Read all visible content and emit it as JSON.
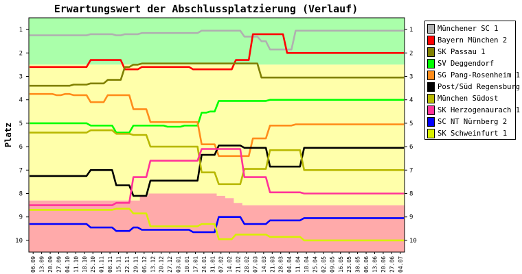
{
  "chart_data": {
    "type": "line",
    "title": "Erwartungswert der Abschlussplatzierung (Verlauf)",
    "ylabel": "Platz",
    "xlabel": "",
    "ylim": [
      1,
      10
    ],
    "y_inverted": true,
    "y_ticks": [
      1,
      2,
      3,
      4,
      5,
      6,
      7,
      8,
      9,
      10
    ],
    "x": [
      "06.09",
      "13.09",
      "20.09",
      "27.09",
      "04.10",
      "11.10",
      "18.10",
      "25.10",
      "01.11",
      "08.11",
      "15.11",
      "22.11",
      "29.11",
      "06.12",
      "13.12",
      "20.12",
      "27.12",
      "03.01",
      "10.01",
      "17.01",
      "24.01",
      "31.01",
      "07.02",
      "14.02",
      "21.02",
      "28.02",
      "07.03",
      "14.03",
      "21.03",
      "28.03",
      "04.04",
      "11.04",
      "18.04",
      "25.04",
      "02.05",
      "09.05",
      "16.05",
      "23.05",
      "30.05",
      "06.06",
      "13.06",
      "20.06",
      "27.06",
      "04.07"
    ],
    "zones": [
      {
        "color": "#aaffaa",
        "bounds": [
          [
            0.5,
            2.5
          ],
          [
            0.5,
            2.5
          ],
          [
            0.5,
            2.5
          ],
          [
            0.5,
            2.5
          ],
          [
            0.5,
            2.5
          ],
          [
            0.5,
            2.5
          ],
          [
            0.5,
            2.5
          ],
          [
            0.5,
            2.5
          ],
          [
            0.5,
            2.5
          ],
          [
            0.5,
            2.5
          ],
          [
            0.5,
            2.5
          ],
          [
            0.5,
            2.5
          ],
          [
            0.5,
            2.5
          ],
          [
            0.5,
            2.5
          ],
          [
            0.5,
            2.5
          ],
          [
            0.5,
            2.5
          ],
          [
            0.5,
            2.5
          ],
          [
            0.5,
            2.5
          ],
          [
            0.5,
            2.5
          ],
          [
            0.5,
            2.5
          ],
          [
            0.5,
            2.5
          ],
          [
            0.5,
            2.5
          ],
          [
            0.5,
            2.5
          ],
          [
            0.5,
            2.5
          ],
          [
            0.5,
            2.5
          ],
          [
            0.5,
            2.5
          ],
          [
            0.5,
            2.5
          ],
          [
            0.5,
            2.5
          ],
          [
            0.5,
            2.5
          ],
          [
            0.5,
            2.5
          ],
          [
            0.5,
            2.5
          ],
          [
            0.5,
            2.5
          ],
          [
            0.5,
            2.5
          ],
          [
            0.5,
            2.5
          ],
          [
            0.5,
            2.5
          ],
          [
            0.5,
            2.5
          ],
          [
            0.5,
            2.5
          ],
          [
            0.5,
            2.5
          ],
          [
            0.5,
            2.5
          ],
          [
            0.5,
            2.5
          ],
          [
            0.5,
            2.5
          ],
          [
            0.5,
            2.5
          ],
          [
            0.5,
            2.5
          ],
          [
            0.5,
            2.5
          ]
        ]
      },
      {
        "color": "#ffffaa",
        "bounds": [
          [
            2.5,
            8.3
          ],
          [
            2.5,
            8.3
          ],
          [
            2.5,
            8.3
          ],
          [
            2.5,
            8.3
          ],
          [
            2.5,
            8.3
          ],
          [
            2.5,
            8.3
          ],
          [
            2.5,
            8.3
          ],
          [
            2.5,
            8.3
          ],
          [
            2.5,
            8.3
          ],
          [
            2.5,
            8.3
          ],
          [
            2.5,
            8.3
          ],
          [
            2.5,
            8.3
          ],
          [
            2.5,
            8.3
          ],
          [
            2.5,
            8.1
          ],
          [
            2.5,
            8.0
          ],
          [
            2.5,
            8.0
          ],
          [
            2.5,
            8.0
          ],
          [
            2.5,
            8.0
          ],
          [
            2.5,
            8.0
          ],
          [
            2.5,
            8.0
          ],
          [
            2.5,
            8.0
          ],
          [
            2.5,
            8.0
          ],
          [
            2.5,
            8.1
          ],
          [
            2.5,
            8.2
          ],
          [
            2.5,
            8.4
          ],
          [
            2.5,
            8.5
          ],
          [
            2.5,
            8.5
          ],
          [
            2.5,
            8.5
          ],
          [
            2.5,
            8.5
          ],
          [
            2.5,
            8.5
          ],
          [
            2.5,
            8.5
          ],
          [
            2.5,
            8.5
          ],
          [
            2.5,
            8.5
          ],
          [
            2.5,
            8.5
          ],
          [
            2.5,
            8.5
          ],
          [
            2.5,
            8.5
          ],
          [
            2.5,
            8.5
          ],
          [
            2.5,
            8.5
          ],
          [
            2.5,
            8.5
          ],
          [
            2.5,
            8.5
          ],
          [
            2.5,
            8.5
          ],
          [
            2.5,
            8.5
          ],
          [
            2.5,
            8.5
          ],
          [
            2.5,
            8.5
          ]
        ]
      },
      {
        "color": "#ffaaaa",
        "bounds": [
          [
            8.3,
            10.5
          ],
          [
            8.3,
            10.5
          ],
          [
            8.3,
            10.5
          ],
          [
            8.3,
            10.5
          ],
          [
            8.3,
            10.5
          ],
          [
            8.3,
            10.5
          ],
          [
            8.3,
            10.5
          ],
          [
            8.3,
            10.5
          ],
          [
            8.3,
            10.5
          ],
          [
            8.3,
            10.5
          ],
          [
            8.3,
            10.5
          ],
          [
            8.3,
            10.5
          ],
          [
            8.3,
            10.5
          ],
          [
            8.1,
            10.5
          ],
          [
            8.0,
            10.5
          ],
          [
            8.0,
            10.5
          ],
          [
            8.0,
            10.5
          ],
          [
            8.0,
            10.5
          ],
          [
            8.0,
            10.5
          ],
          [
            8.0,
            10.5
          ],
          [
            8.0,
            10.5
          ],
          [
            8.0,
            10.5
          ],
          [
            8.1,
            10.5
          ],
          [
            8.2,
            10.5
          ],
          [
            8.4,
            10.5
          ],
          [
            8.5,
            10.5
          ],
          [
            8.5,
            10.5
          ],
          [
            8.5,
            10.5
          ],
          [
            8.5,
            10.5
          ],
          [
            8.5,
            10.5
          ],
          [
            8.5,
            10.5
          ],
          [
            8.5,
            10.5
          ],
          [
            8.5,
            10.5
          ],
          [
            8.5,
            10.5
          ],
          [
            8.5,
            10.5
          ],
          [
            8.5,
            10.5
          ],
          [
            8.5,
            10.5
          ],
          [
            8.5,
            10.5
          ],
          [
            8.5,
            10.5
          ],
          [
            8.5,
            10.5
          ],
          [
            8.5,
            10.5
          ],
          [
            8.5,
            10.5
          ],
          [
            8.5,
            10.5
          ],
          [
            8.5,
            10.5
          ]
        ]
      }
    ],
    "series": [
      {
        "name": "Münchener SC 1",
        "color": "#b0b0b0",
        "values": [
          1.25,
          1.25,
          1.25,
          1.25,
          1.25,
          1.25,
          1.25,
          1.2,
          1.2,
          1.2,
          1.25,
          1.2,
          1.2,
          1.15,
          1.15,
          1.15,
          1.15,
          1.15,
          1.15,
          1.15,
          1.05,
          1.05,
          1.05,
          1.05,
          1.05,
          1.3,
          1.3,
          1.5,
          1.85,
          1.85,
          1.85,
          1.05,
          1.05,
          1.05,
          1.05,
          1.05,
          1.05,
          1.05,
          1.05,
          1.05,
          1.05,
          1.05,
          1.05,
          1.05
        ]
      },
      {
        "name": "Bayern München 2",
        "color": "#ff0000",
        "values": [
          2.6,
          2.6,
          2.6,
          2.6,
          2.6,
          2.6,
          2.6,
          2.3,
          2.3,
          2.3,
          2.3,
          2.7,
          2.7,
          2.6,
          2.6,
          2.6,
          2.6,
          2.6,
          2.6,
          2.7,
          2.7,
          2.7,
          2.7,
          2.7,
          2.3,
          2.3,
          1.2,
          1.2,
          1.2,
          1.2,
          2.0,
          2.0,
          2.0,
          2.0,
          2.0,
          2.0,
          2.0,
          2.0,
          2.0,
          2.0,
          2.0,
          2.0,
          2.0,
          2.0
        ]
      },
      {
        "name": "SK Passau 1",
        "color": "#808000",
        "values": [
          3.4,
          3.4,
          3.4,
          3.4,
          3.4,
          3.35,
          3.35,
          3.3,
          3.3,
          3.15,
          3.15,
          2.6,
          2.5,
          2.45,
          2.45,
          2.45,
          2.45,
          2.45,
          2.45,
          2.45,
          2.45,
          2.45,
          2.45,
          2.45,
          2.45,
          2.45,
          2.45,
          3.05,
          3.05,
          3.05,
          3.05,
          3.05,
          3.05,
          3.05,
          3.05,
          3.05,
          3.05,
          3.05,
          3.05,
          3.05,
          3.05,
          3.05,
          3.05,
          3.05
        ]
      },
      {
        "name": "SV Deggendorf",
        "color": "#00ff00",
        "values": [
          5.0,
          5.0,
          5.0,
          5.0,
          5.0,
          5.0,
          5.0,
          5.1,
          5.1,
          5.1,
          5.4,
          5.4,
          5.1,
          5.1,
          5.1,
          5.1,
          5.15,
          5.15,
          5.1,
          5.1,
          4.55,
          4.5,
          4.05,
          4.05,
          4.05,
          4.05,
          4.05,
          4.05,
          4.0,
          4.0,
          4.0,
          4.0,
          4.0,
          4.0,
          4.0,
          4.0,
          4.0,
          4.0,
          4.0,
          4.0,
          4.0,
          4.0,
          4.0,
          4.0
        ]
      },
      {
        "name": "SG Pang-Rosenheim 1",
        "color": "#ff8c1a",
        "values": [
          3.75,
          3.75,
          3.75,
          3.8,
          3.75,
          3.8,
          3.8,
          4.1,
          4.1,
          3.8,
          3.8,
          3.8,
          4.4,
          4.4,
          4.95,
          4.95,
          4.95,
          4.95,
          4.95,
          4.95,
          5.9,
          5.9,
          6.4,
          6.4,
          6.4,
          6.4,
          5.65,
          5.65,
          5.1,
          5.1,
          5.1,
          5.05,
          5.05,
          5.05,
          5.05,
          5.05,
          5.05,
          5.05,
          5.05,
          5.05,
          5.05,
          5.05,
          5.05,
          5.05
        ]
      },
      {
        "name": "Post/Süd Regensburg",
        "color": "#000000",
        "values": [
          7.25,
          7.25,
          7.25,
          7.25,
          7.25,
          7.25,
          7.25,
          7.0,
          7.0,
          7.0,
          7.65,
          7.65,
          8.1,
          8.1,
          7.45,
          7.45,
          7.45,
          7.45,
          7.45,
          7.45,
          6.35,
          6.35,
          5.95,
          5.95,
          5.95,
          6.05,
          6.05,
          6.05,
          6.85,
          6.85,
          6.85,
          6.85,
          6.05,
          6.05,
          6.05,
          6.05,
          6.05,
          6.05,
          6.05,
          6.05,
          6.05,
          6.05,
          6.05,
          6.05
        ]
      },
      {
        "name": "München Südost",
        "color": "#b8b800",
        "values": [
          5.4,
          5.4,
          5.4,
          5.4,
          5.4,
          5.4,
          5.4,
          5.3,
          5.3,
          5.3,
          5.45,
          5.45,
          5.5,
          5.5,
          6.0,
          6.0,
          6.0,
          6.0,
          6.0,
          6.0,
          7.1,
          7.1,
          7.6,
          7.6,
          7.6,
          6.95,
          6.95,
          6.95,
          6.15,
          6.15,
          6.15,
          6.15,
          7.0,
          7.0,
          7.0,
          7.0,
          7.0,
          7.0,
          7.0,
          7.0,
          7.0,
          7.0,
          7.0,
          7.0
        ]
      },
      {
        "name": "SK Herzogenaurach 1",
        "color": "#ff3399",
        "values": [
          8.5,
          8.5,
          8.5,
          8.5,
          8.5,
          8.5,
          8.5,
          8.5,
          8.5,
          8.5,
          8.4,
          8.4,
          7.3,
          7.3,
          6.6,
          6.6,
          6.6,
          6.6,
          6.6,
          6.6,
          6.1,
          6.1,
          6.1,
          6.1,
          6.1,
          7.3,
          7.3,
          7.3,
          7.95,
          7.95,
          7.95,
          7.95,
          8.0,
          8.0,
          8.0,
          8.0,
          8.0,
          8.0,
          8.0,
          8.0,
          8.0,
          8.0,
          8.0,
          8.0
        ]
      },
      {
        "name": "SC NT Nürnberg 2",
        "color": "#0000ff",
        "values": [
          9.3,
          9.3,
          9.3,
          9.3,
          9.3,
          9.3,
          9.3,
          9.45,
          9.45,
          9.45,
          9.6,
          9.6,
          9.45,
          9.55,
          9.55,
          9.55,
          9.55,
          9.55,
          9.55,
          9.65,
          9.65,
          9.65,
          9.0,
          9.0,
          9.0,
          9.3,
          9.3,
          9.3,
          9.15,
          9.15,
          9.15,
          9.15,
          9.05,
          9.05,
          9.05,
          9.05,
          9.05,
          9.05,
          9.05,
          9.05,
          9.05,
          9.05,
          9.05,
          9.05
        ]
      },
      {
        "name": "SK Schweinfurt 1",
        "color": "#d8f000",
        "values": [
          8.7,
          8.7,
          8.7,
          8.7,
          8.7,
          8.7,
          8.7,
          8.7,
          8.7,
          8.7,
          8.65,
          8.65,
          8.85,
          8.85,
          9.4,
          9.4,
          9.4,
          9.4,
          9.4,
          9.4,
          9.3,
          9.3,
          9.95,
          9.95,
          9.75,
          9.75,
          9.75,
          9.75,
          9.85,
          9.85,
          9.85,
          9.85,
          10.0,
          10.0,
          10.0,
          10.0,
          10.0,
          10.0,
          10.0,
          10.0,
          10.0,
          10.0,
          10.0,
          10.0
        ]
      }
    ]
  }
}
